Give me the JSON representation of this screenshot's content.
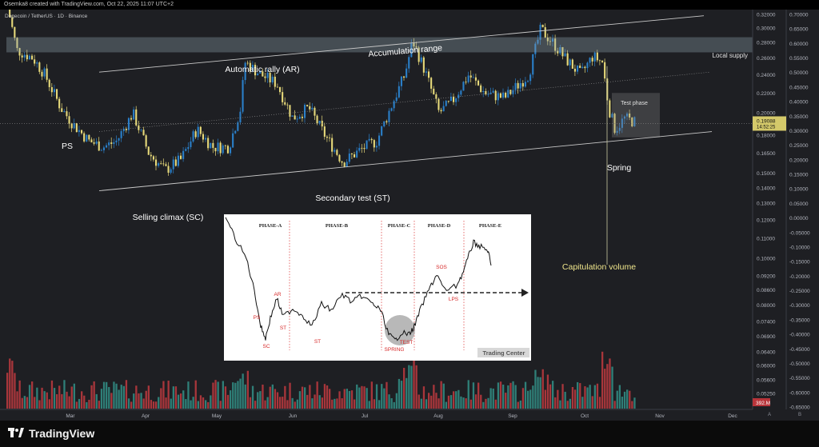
{
  "header": {
    "attribution": "Osemka8 created with TradingView.com, Oct 22, 2025 11:07 UTC+2"
  },
  "chart": {
    "symbol_line": "Dogecoin / TetherUS · 1D · Binance",
    "price_axis_labels": [
      "0.32000",
      "0.30000",
      "0.28000",
      "0.26000",
      "0.24000",
      "0.22000",
      "0.20000",
      "0.18000",
      "0.16500",
      "0.15000",
      "0.14000",
      "0.13000",
      "0.12000",
      "0.11000",
      "0.10000",
      "0.09200",
      "0.08600",
      "0.08000",
      "0.07400",
      "0.06900",
      "0.06400",
      "0.06000",
      "0.05600",
      "0.05250"
    ],
    "price_axis_highlight": {
      "value": "0.19088",
      "countdown": "14:52:25",
      "color": "#d4c96a"
    },
    "percent_axis_labels": [
      "0.70000",
      "0.65000",
      "0.60000",
      "0.55000",
      "0.50000",
      "0.45000",
      "0.40000",
      "0.35000",
      "0.30000",
      "0.25000",
      "0.20000",
      "0.15000",
      "0.10000",
      "0.05000",
      "0.00000",
      "-0.05000",
      "-0.10000",
      "-0.15000",
      "-0.20000",
      "-0.25000",
      "-0.30000",
      "-0.35000",
      "-0.40000",
      "-0.45000",
      "-0.50000",
      "-0.55000",
      "-0.60000",
      "-0.65000"
    ],
    "volume_badge": "392.M",
    "axis_corner": {
      "a": "A",
      "b": "B"
    },
    "time_axis_labels": [
      "Mar",
      "Apr",
      "May",
      "Jun",
      "Jul",
      "Aug",
      "Sep",
      "Oct",
      "Nov",
      "Dec"
    ],
    "annotations": {
      "ps": "PS",
      "sc": "Selling climax (SC)",
      "ar": "Automatic rally (AR)",
      "accumulation": "Accumulation range",
      "st": "Secondary test (ST)",
      "local_supply": "Local supply",
      "test_phase": "Test phase",
      "spring": "Spring",
      "capitulation": "Capitulation volume"
    },
    "colors": {
      "up": "#2a7fc9",
      "down": "#e6d97a",
      "vol_up": "#2f7f78",
      "vol_down": "#a8363b",
      "background": "#1e1f23"
    }
  },
  "inset": {
    "phases": [
      "PHASE-A",
      "PHASE-B",
      "PHASE-C",
      "PHASE-D",
      "PHASE-E"
    ],
    "labels": {
      "ps": "PS",
      "ar": "AR",
      "sc": "SC",
      "st1": "ST",
      "st2": "ST",
      "spring": "SPRING",
      "test": "TEST",
      "sos": "SOS",
      "lps": "LPS"
    },
    "watermark": "Trading Center"
  },
  "footer": {
    "brand": "TradingView"
  },
  "chart_data": {
    "type": "candlestick",
    "title": "Dogecoin / TetherUS · 1D · Binance",
    "symbol": "DOGE/USDT",
    "timeframe": "1D",
    "x_range": [
      "2025-02-15",
      "2025-12-25"
    ],
    "ylim": [
      0.05,
      0.32
    ],
    "y_scale": "log",
    "last_price": 0.19088,
    "ranges": [
      {
        "label": "Feb–Mar",
        "from": 0.34,
        "to": 0.17
      },
      {
        "label": "Apr",
        "low": 0.142
      },
      {
        "label": "May",
        "high": 0.26
      },
      {
        "label": "Jun",
        "low": 0.153
      },
      {
        "label": "Jul",
        "high": 0.285
      },
      {
        "label": "Aug",
        "low": 0.195
      },
      {
        "label": "Sep",
        "high": 0.305
      },
      {
        "label": "Oct",
        "low": 0.18,
        "close": 0.19088
      }
    ]
  }
}
